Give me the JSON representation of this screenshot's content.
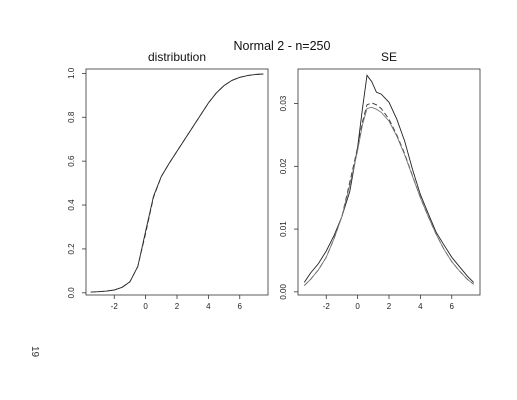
{
  "figure": {
    "title": "Normal 2 - n=250",
    "page_number": "19"
  },
  "chart_data": [
    {
      "type": "line",
      "title": "distribution",
      "xlabel": "",
      "ylabel": "",
      "xlim": [
        -3.8,
        7.8
      ],
      "ylim": [
        -0.01,
        1.02
      ],
      "x_ticks": [
        -2,
        0,
        2,
        4,
        6
      ],
      "y_ticks": [
        0.0,
        0.2,
        0.4,
        0.6,
        0.8,
        1.0
      ],
      "x_tick_labels": [
        "-2",
        "0",
        "2",
        "4",
        "6"
      ],
      "y_tick_labels": [
        "0.0",
        "0.2",
        "0.4",
        "0.6",
        "0.8",
        "1.0"
      ],
      "grid": false,
      "series": [
        {
          "style": "solid",
          "x": [
            -3.5,
            -3,
            -2.5,
            -2,
            -1.5,
            -1,
            -0.5,
            0,
            0.5,
            1,
            1.5,
            2,
            2.5,
            3,
            3.5,
            4,
            4.5,
            5,
            5.5,
            6,
            6.5,
            7,
            7.5
          ],
          "y": [
            0.003,
            0.005,
            0.008,
            0.013,
            0.025,
            0.05,
            0.12,
            0.28,
            0.44,
            0.53,
            0.59,
            0.645,
            0.7,
            0.755,
            0.81,
            0.865,
            0.91,
            0.945,
            0.968,
            0.982,
            0.99,
            0.995,
            0.997
          ]
        },
        {
          "style": "dashed",
          "x": [
            -3.5,
            -3,
            -2.5,
            -2,
            -1.5,
            -1,
            -0.5,
            0,
            0.5,
            1,
            1.5,
            2,
            2.5,
            3,
            3.5,
            4,
            4.5,
            5,
            5.5,
            6,
            6.5,
            7,
            7.5
          ],
          "y": [
            0.003,
            0.005,
            0.008,
            0.013,
            0.025,
            0.05,
            0.12,
            0.27,
            0.435,
            0.53,
            0.59,
            0.645,
            0.7,
            0.755,
            0.81,
            0.865,
            0.91,
            0.945,
            0.968,
            0.982,
            0.99,
            0.995,
            0.997
          ]
        }
      ]
    },
    {
      "type": "line",
      "title": "SE",
      "xlabel": "",
      "ylabel": "",
      "xlim": [
        -3.8,
        7.8
      ],
      "ylim": [
        -0.0005,
        0.0355
      ],
      "x_ticks": [
        -2,
        0,
        2,
        4,
        6
      ],
      "y_ticks": [
        0.0,
        0.01,
        0.02,
        0.03
      ],
      "x_tick_labels": [
        "-2",
        "0",
        "2",
        "4",
        "6"
      ],
      "y_tick_labels": [
        "0.00",
        "0.01",
        "0.02",
        "0.03"
      ],
      "grid": false,
      "series": [
        {
          "style": "solid",
          "x": [
            -3.4,
            -3,
            -2.5,
            -2,
            -1.5,
            -1,
            -0.5,
            0,
            0.3,
            0.6,
            0.9,
            1.2,
            1.5,
            2,
            2.5,
            3,
            3.5,
            4,
            4.5,
            5,
            5.5,
            6,
            6.5,
            7,
            7.4
          ],
          "y": [
            0.0015,
            0.003,
            0.0045,
            0.0065,
            0.009,
            0.012,
            0.016,
            0.023,
            0.029,
            0.0345,
            0.0335,
            0.0318,
            0.0315,
            0.0302,
            0.0275,
            0.024,
            0.0195,
            0.0155,
            0.0125,
            0.0095,
            0.0075,
            0.0055,
            0.004,
            0.0025,
            0.0015
          ]
        },
        {
          "style": "dashed",
          "x": [
            -3.4,
            -3,
            -2.5,
            -2,
            -1.5,
            -1,
            -0.5,
            0,
            0.3,
            0.6,
            0.9,
            1.2,
            1.5,
            2,
            2.5,
            3,
            3.5,
            4,
            4.5,
            5,
            5.5,
            6,
            6.5,
            7,
            7.4
          ],
          "y": [
            0.001,
            0.002,
            0.0035,
            0.0055,
            0.0085,
            0.012,
            0.0175,
            0.023,
            0.027,
            0.0298,
            0.0301,
            0.0298,
            0.0292,
            0.0275,
            0.025,
            0.022,
            0.0185,
            0.015,
            0.012,
            0.0092,
            0.0068,
            0.0048,
            0.0033,
            0.002,
            0.0012
          ]
        },
        {
          "style": "solid-gray",
          "x": [
            -3.4,
            -3,
            -2.5,
            -2,
            -1.5,
            -1,
            -0.5,
            0,
            0.3,
            0.6,
            0.9,
            1.2,
            1.5,
            2,
            2.5,
            3,
            3.5,
            4,
            4.5,
            5,
            5.5,
            6,
            6.5,
            7,
            7.4
          ],
          "y": [
            0.001,
            0.002,
            0.0035,
            0.0055,
            0.0085,
            0.012,
            0.017,
            0.0225,
            0.0265,
            0.0292,
            0.0294,
            0.0291,
            0.0286,
            0.0272,
            0.0248,
            0.0218,
            0.0184,
            0.015,
            0.012,
            0.0092,
            0.0068,
            0.0048,
            0.0033,
            0.002,
            0.0012
          ]
        }
      ]
    }
  ]
}
